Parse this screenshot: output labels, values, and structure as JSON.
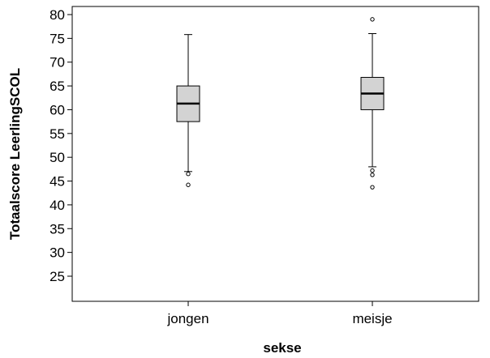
{
  "chart_data": {
    "type": "boxplot",
    "title": "",
    "xlabel": "sekse",
    "ylabel": "Totaalscore LeerlingSCOL",
    "ylim": [
      20,
      81
    ],
    "yticks": [
      25,
      30,
      35,
      40,
      45,
      50,
      55,
      60,
      65,
      70,
      75,
      80
    ],
    "grid": false,
    "box_fill": "#d3d3d3",
    "categories": [
      "jongen",
      "meisje"
    ],
    "boxes": [
      {
        "category": "jongen",
        "whisker_low": 47,
        "q1": 57.5,
        "median": 61.3,
        "q3": 65,
        "whisker_high": 75.8,
        "outliers": [
          46.5,
          44.2
        ]
      },
      {
        "category": "meisje",
        "whisker_low": 48,
        "q1": 60,
        "median": 63.4,
        "q3": 66.8,
        "whisker_high": 76,
        "outliers": [
          79,
          47.2,
          46.3,
          43.7
        ]
      }
    ]
  }
}
